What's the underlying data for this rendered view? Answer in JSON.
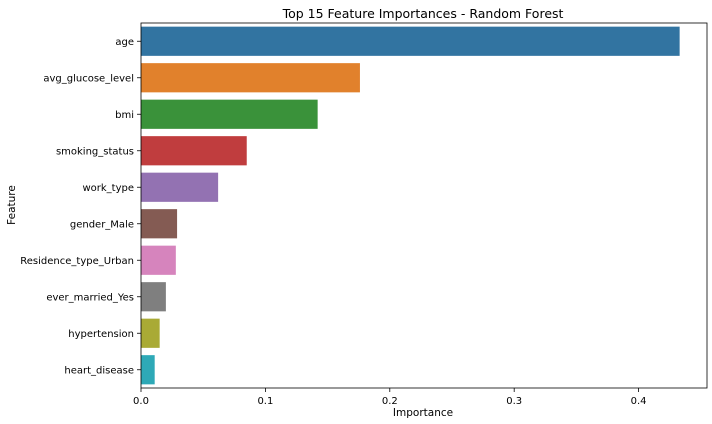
{
  "chart_data": {
    "type": "bar",
    "orientation": "horizontal",
    "title": "Top 15 Feature Importances - Random Forest",
    "xlabel": "Importance",
    "ylabel": "Feature",
    "xlim": [
      0,
      0.455
    ],
    "xticks": [
      "0.0",
      "0.1",
      "0.2",
      "0.3",
      "0.4"
    ],
    "grid": false,
    "legend": "none",
    "categories": [
      "age",
      "avg_glucose_level",
      "bmi",
      "smoking_status",
      "work_type",
      "gender_Male",
      "Residence_type_Urban",
      "ever_married_Yes",
      "hypertension",
      "heart_disease"
    ],
    "values": [
      0.433,
      0.176,
      0.142,
      0.085,
      0.062,
      0.029,
      0.028,
      0.02,
      0.015,
      0.011
    ],
    "colors": [
      "#3274a1",
      "#e1812c",
      "#3a923a",
      "#c03d3e",
      "#9372b2",
      "#845b53",
      "#d684bd",
      "#7f7f7f",
      "#a9aa35",
      "#2ea9b7"
    ]
  }
}
